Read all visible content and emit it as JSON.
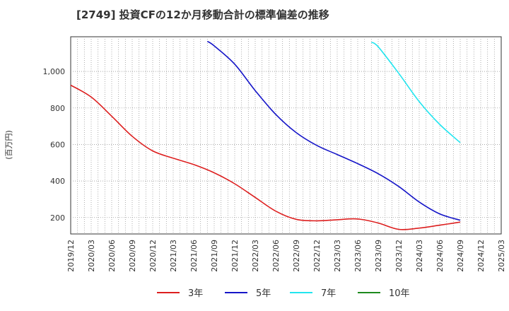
{
  "chart_data": {
    "type": "line",
    "title": "[2749]  投資CFの12か月移動合計の標準偏差の推移",
    "ylabel": "(百万円)",
    "xlabel": "",
    "x_ticks": [
      "2019/12",
      "2020/03",
      "2020/06",
      "2020/09",
      "2020/12",
      "2021/03",
      "2021/06",
      "2021/09",
      "2021/12",
      "2022/03",
      "2022/06",
      "2022/09",
      "2022/12",
      "2023/03",
      "2023/06",
      "2023/09",
      "2023/12",
      "2024/03",
      "2024/06",
      "2024/09",
      "2024/12",
      "2025/03"
    ],
    "y_ticks": [
      200,
      400,
      600,
      800,
      1000
    ],
    "y_tick_labels": [
      "200",
      "400",
      "600",
      "800",
      "1,000"
    ],
    "ylim": [
      110,
      1190
    ],
    "grid": true,
    "legend_position": "bottom",
    "series": [
      {
        "name": "3年",
        "color": "#dd1f1f",
        "points": [
          [
            "2019/12",
            925
          ],
          [
            "2020/03",
            860
          ],
          [
            "2020/06",
            755
          ],
          [
            "2020/09",
            645
          ],
          [
            "2020/12",
            565
          ],
          [
            "2021/03",
            525
          ],
          [
            "2021/06",
            490
          ],
          [
            "2021/09",
            445
          ],
          [
            "2021/12",
            385
          ],
          [
            "2022/03",
            310
          ],
          [
            "2022/06",
            235
          ],
          [
            "2022/09",
            190
          ],
          [
            "2022/12",
            182
          ],
          [
            "2023/03",
            188
          ],
          [
            "2023/06",
            192
          ],
          [
            "2023/09",
            170
          ],
          [
            "2023/12",
            135
          ],
          [
            "2024/03",
            142
          ],
          [
            "2024/06",
            158
          ],
          [
            "2024/09",
            175
          ]
        ]
      },
      {
        "name": "5年",
        "color": "#1515c8",
        "points": [
          [
            "2021/08",
            1165
          ],
          [
            "2021/09",
            1140
          ],
          [
            "2021/12",
            1040
          ],
          [
            "2022/03",
            895
          ],
          [
            "2022/06",
            765
          ],
          [
            "2022/09",
            665
          ],
          [
            "2022/12",
            595
          ],
          [
            "2023/03",
            545
          ],
          [
            "2023/06",
            495
          ],
          [
            "2023/09",
            440
          ],
          [
            "2023/12",
            370
          ],
          [
            "2024/03",
            285
          ],
          [
            "2024/06",
            220
          ],
          [
            "2024/09",
            185
          ]
        ]
      },
      {
        "name": "7年",
        "color": "#22e5ef",
        "points": [
          [
            "2023/08",
            1160
          ],
          [
            "2023/09",
            1135
          ],
          [
            "2023/12",
            990
          ],
          [
            "2024/03",
            835
          ],
          [
            "2024/06",
            710
          ],
          [
            "2024/09",
            610
          ]
        ]
      },
      {
        "name": "10年",
        "color": "#1e8a1e",
        "points": []
      }
    ]
  }
}
